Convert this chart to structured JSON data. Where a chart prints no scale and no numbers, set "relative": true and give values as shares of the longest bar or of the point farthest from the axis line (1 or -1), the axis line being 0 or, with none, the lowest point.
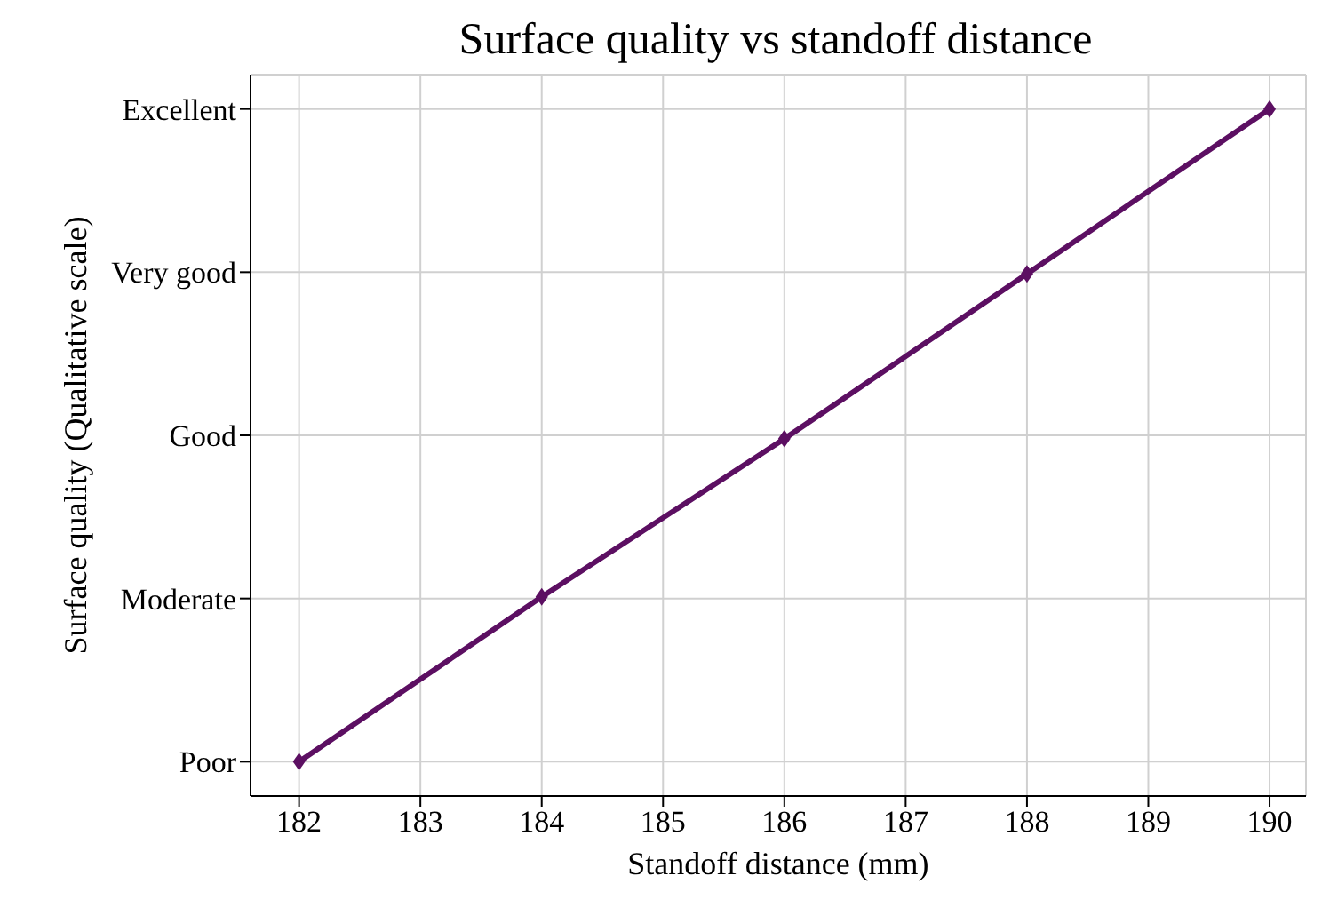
{
  "chart_data": {
    "type": "line",
    "title": "Surface quality vs standoff distance",
    "xlabel": "Standoff distance (mm)",
    "ylabel": "Surface quality (Qualitative scale)",
    "x": [
      182,
      184,
      186,
      188,
      190
    ],
    "relative": true,
    "y_categories": [
      "Excellent",
      "Very good",
      "Good",
      "Moderate",
      "Poor"
    ],
    "series": [
      {
        "color": "#5c0f62",
        "values": [
          0.05,
          0.29,
          0.52,
          0.76,
          1
        ]
      }
    ],
    "xlim": [
      181.6,
      190.3
    ],
    "xticks": [
      182,
      183,
      184,
      185,
      186,
      187,
      188,
      189,
      190
    ],
    "grid": true,
    "marker": "diamond",
    "line_style": "solid"
  }
}
